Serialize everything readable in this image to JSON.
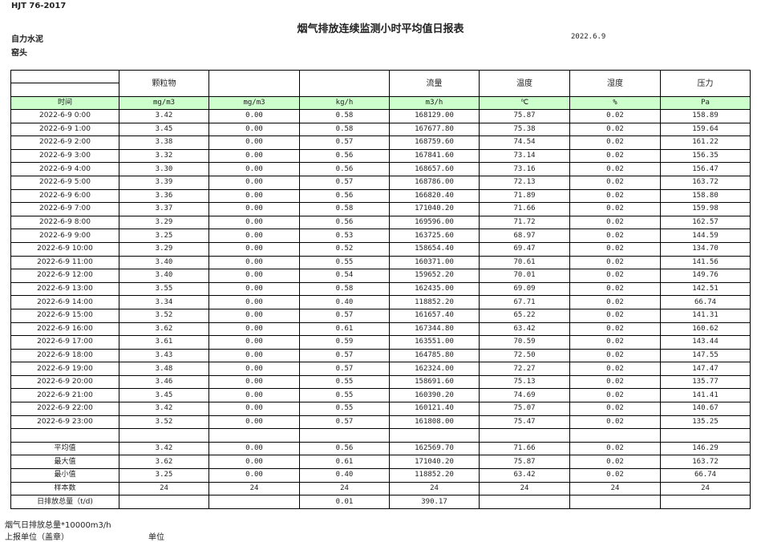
{
  "standard": "HJT  76-2017",
  "title": "烟气排放连续监测小时平均值日报表",
  "company": "自力水泥",
  "unit_name": "窑头",
  "date": "2022.6.9",
  "header": [
    "",
    "颗粒物",
    "",
    "",
    "流量",
    "温度",
    "湿度",
    "压力"
  ],
  "units": [
    "时间",
    "mg/m3",
    "mg/m3",
    "kg/h",
    "m3/h",
    "℃",
    "%",
    "Pa"
  ],
  "rows": [
    [
      "2022-6-9 0:00",
      "3.42",
      "0.00",
      "0.58",
      "168129.00",
      "75.87",
      "0.02",
      "158.89"
    ],
    [
      "2022-6-9 1:00",
      "3.45",
      "0.00",
      "0.58",
      "167677.80",
      "75.38",
      "0.02",
      "159.64"
    ],
    [
      "2022-6-9 2:00",
      "3.38",
      "0.00",
      "0.57",
      "168759.60",
      "74.54",
      "0.02",
      "161.22"
    ],
    [
      "2022-6-9 3:00",
      "3.32",
      "0.00",
      "0.56",
      "167841.60",
      "73.14",
      "0.02",
      "156.35"
    ],
    [
      "2022-6-9 4:00",
      "3.30",
      "0.00",
      "0.56",
      "168657.60",
      "73.16",
      "0.02",
      "156.47"
    ],
    [
      "2022-6-9 5:00",
      "3.39",
      "0.00",
      "0.57",
      "168786.00",
      "72.13",
      "0.02",
      "163.72"
    ],
    [
      "2022-6-9 6:00",
      "3.36",
      "0.00",
      "0.56",
      "166820.40",
      "71.89",
      "0.02",
      "158.80"
    ],
    [
      "2022-6-9 7:00",
      "3.37",
      "0.00",
      "0.58",
      "171040.20",
      "71.66",
      "0.02",
      "159.98"
    ],
    [
      "2022-6-9 8:00",
      "3.29",
      "0.00",
      "0.56",
      "169596.00",
      "71.72",
      "0.02",
      "162.57"
    ],
    [
      "2022-6-9 9:00",
      "3.25",
      "0.00",
      "0.53",
      "163725.60",
      "68.97",
      "0.02",
      "144.59"
    ],
    [
      "2022-6-9 10:00",
      "3.29",
      "0.00",
      "0.52",
      "158654.40",
      "69.47",
      "0.02",
      "134.70"
    ],
    [
      "2022-6-9 11:00",
      "3.40",
      "0.00",
      "0.55",
      "160371.00",
      "70.61",
      "0.02",
      "141.56"
    ],
    [
      "2022-6-9 12:00",
      "3.40",
      "0.00",
      "0.54",
      "159652.20",
      "70.01",
      "0.02",
      "149.76"
    ],
    [
      "2022-6-9 13:00",
      "3.55",
      "0.00",
      "0.58",
      "162435.00",
      "69.09",
      "0.02",
      "142.51"
    ],
    [
      "2022-6-9 14:00",
      "3.34",
      "0.00",
      "0.40",
      "118852.20",
      "67.71",
      "0.02",
      "66.74"
    ],
    [
      "2022-6-9 15:00",
      "3.52",
      "0.00",
      "0.57",
      "161657.40",
      "65.22",
      "0.02",
      "141.31"
    ],
    [
      "2022-6-9 16:00",
      "3.62",
      "0.00",
      "0.61",
      "167344.80",
      "63.42",
      "0.02",
      "160.62"
    ],
    [
      "2022-6-9 17:00",
      "3.61",
      "0.00",
      "0.59",
      "163551.00",
      "70.59",
      "0.02",
      "143.44"
    ],
    [
      "2022-6-9 18:00",
      "3.43",
      "0.00",
      "0.57",
      "164785.80",
      "72.50",
      "0.02",
      "147.55"
    ],
    [
      "2022-6-9 19:00",
      "3.48",
      "0.00",
      "0.57",
      "162324.00",
      "72.27",
      "0.02",
      "147.47"
    ],
    [
      "2022-6-9 20:00",
      "3.46",
      "0.00",
      "0.55",
      "158691.60",
      "75.13",
      "0.02",
      "135.77"
    ],
    [
      "2022-6-9 21:00",
      "3.45",
      "0.00",
      "0.55",
      "160390.20",
      "74.69",
      "0.02",
      "141.41"
    ],
    [
      "2022-6-9 22:00",
      "3.42",
      "0.00",
      "0.55",
      "160121.40",
      "75.07",
      "0.02",
      "140.67"
    ],
    [
      "2022-6-9 23:00",
      "3.52",
      "0.00",
      "0.57",
      "161808.00",
      "75.47",
      "0.02",
      "135.25"
    ]
  ],
  "stats": [
    [
      "平均值",
      "3.42",
      "0.00",
      "0.56",
      "162569.70",
      "71.66",
      "0.02",
      "146.29"
    ],
    [
      "最大值",
      "3.62",
      "0.00",
      "0.61",
      "171040.20",
      "75.87",
      "0.02",
      "163.72"
    ],
    [
      "最小值",
      "3.25",
      "0.00",
      "0.40",
      "118852.20",
      "63.42",
      "0.02",
      "66.74"
    ],
    [
      "样本数",
      "24",
      "24",
      "24",
      "24",
      "24",
      "24",
      "24"
    ],
    [
      "日排放总量（t/d)",
      "",
      "",
      "0.01",
      "390.17",
      "",
      "",
      ""
    ]
  ],
  "footer": {
    "flue_total": "烟气日排放总量*10000m3/h",
    "reporter": "上报单位（盖章）",
    "unit": "单位"
  }
}
